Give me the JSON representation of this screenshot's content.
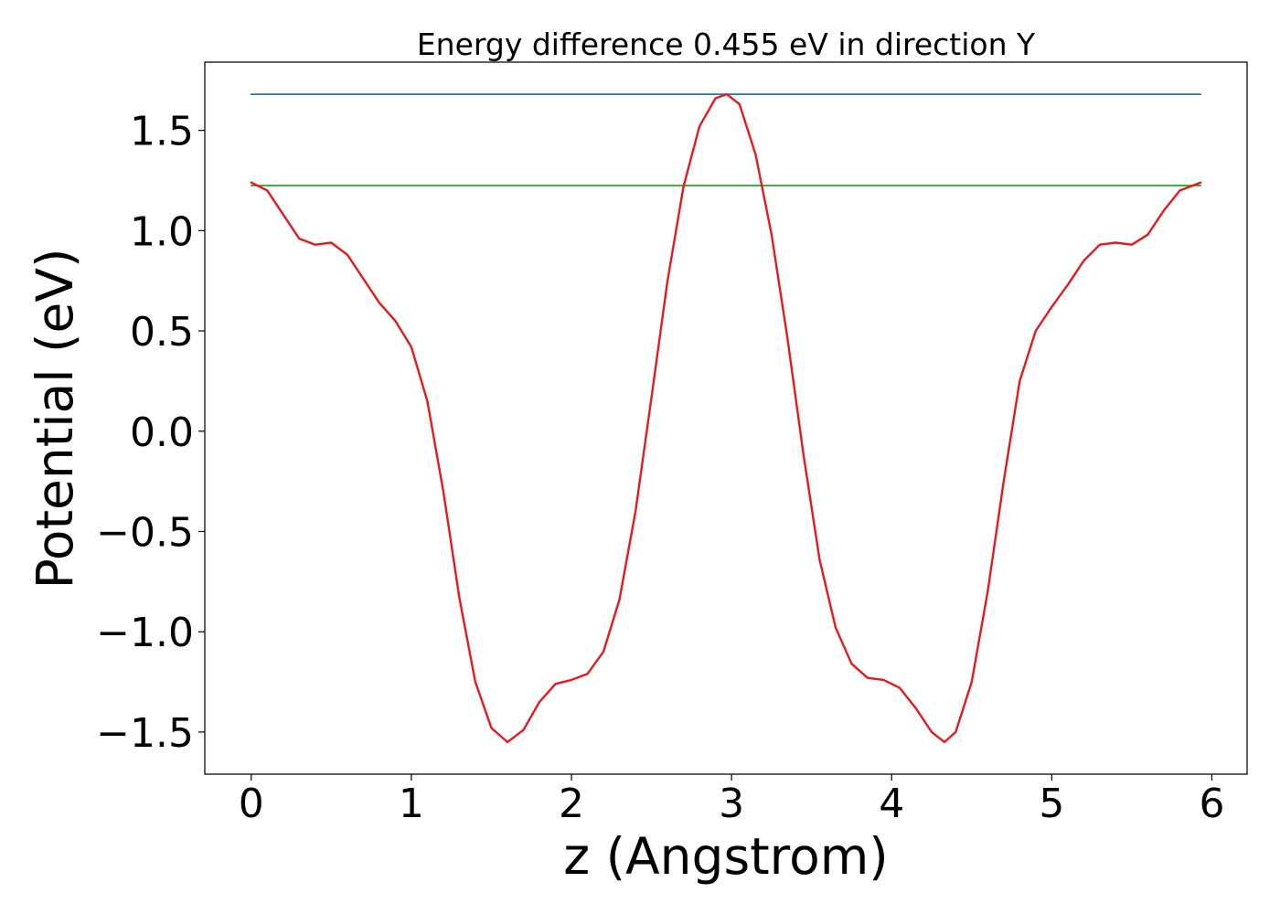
{
  "chart_data": {
    "type": "line",
    "title": "Energy difference 0.455 eV in direction Y",
    "xlabel": "z (Angstrom)",
    "ylabel": "Potential (eV)",
    "xlim": [
      -0.29,
      6.22
    ],
    "ylim": [
      -1.71,
      1.84
    ],
    "xticks": [
      0,
      1,
      2,
      3,
      4,
      5,
      6
    ],
    "xtick_labels": [
      "0",
      "1",
      "2",
      "3",
      "4",
      "5",
      "6"
    ],
    "yticks": [
      1.5,
      1.0,
      0.5,
      0.0,
      -0.5,
      -1.0,
      -1.5
    ],
    "ytick_labels": [
      "1.5",
      "1.0",
      "0.5",
      "0.0",
      "−0.5",
      "−1.0",
      "−1.5"
    ],
    "grid": false,
    "series": [
      {
        "color": "#1f77b4",
        "x": [
          0,
          5.93
        ],
        "y": [
          1.68,
          1.68
        ]
      },
      {
        "color": "#2ca02c",
        "x": [
          0,
          5.93
        ],
        "y": [
          1.225,
          1.225
        ]
      },
      {
        "color": "#e41a1c",
        "x": [
          0,
          0.1,
          0.2,
          0.3,
          0.4,
          0.5,
          0.6,
          0.7,
          0.8,
          0.9,
          1.0,
          1.1,
          1.2,
          1.3,
          1.4,
          1.5,
          1.6,
          1.7,
          1.8,
          1.9,
          2.0,
          2.1,
          2.2,
          2.3,
          2.4,
          2.5,
          2.6,
          2.7,
          2.8,
          2.9,
          2.97,
          3.05,
          3.15,
          3.25,
          3.35,
          3.45,
          3.55,
          3.65,
          3.75,
          3.85,
          3.95,
          4.05,
          4.15,
          4.25,
          4.33,
          4.4,
          4.5,
          4.6,
          4.7,
          4.8,
          4.9,
          5.0,
          5.1,
          5.2,
          5.3,
          5.4,
          5.5,
          5.6,
          5.7,
          5.8,
          5.93
        ],
        "y": [
          1.24,
          1.2,
          1.08,
          0.96,
          0.93,
          0.94,
          0.88,
          0.76,
          0.64,
          0.55,
          0.42,
          0.15,
          -0.3,
          -0.83,
          -1.25,
          -1.48,
          -1.55,
          -1.49,
          -1.35,
          -1.26,
          -1.24,
          -1.21,
          -1.1,
          -0.84,
          -0.4,
          0.17,
          0.75,
          1.22,
          1.52,
          1.66,
          1.68,
          1.63,
          1.38,
          0.98,
          0.46,
          -0.12,
          -0.64,
          -0.98,
          -1.16,
          -1.23,
          -1.24,
          -1.28,
          -1.38,
          -1.5,
          -1.55,
          -1.5,
          -1.25,
          -0.8,
          -0.25,
          0.25,
          0.5,
          0.62,
          0.73,
          0.85,
          0.93,
          0.94,
          0.93,
          0.98,
          1.1,
          1.2,
          1.24
        ]
      }
    ]
  }
}
